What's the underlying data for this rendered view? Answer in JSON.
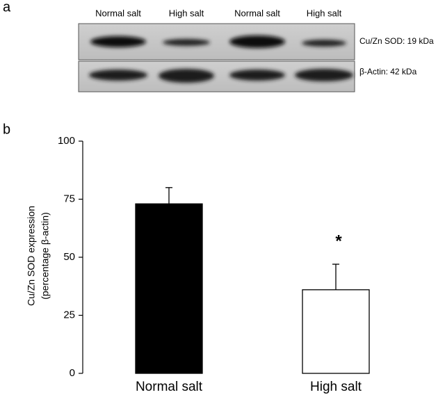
{
  "panel_labels": [
    "a",
    "b"
  ],
  "blot": {
    "lane_labels": [
      "Normal salt",
      "High salt",
      "Normal salt",
      "High salt"
    ],
    "band_labels": [
      "Cu/Zn SOD: 19 kDa",
      "β-Actin: 42 kDa"
    ]
  },
  "chart_data": {
    "type": "bar",
    "ylabel": [
      "Cu/Zn SOD expression",
      "(percentage β-actin)"
    ],
    "categories": [
      "Normal salt",
      "High salt"
    ],
    "values": [
      73,
      36
    ],
    "errors": [
      7,
      11
    ],
    "colors": [
      "#000000",
      "#ffffff"
    ],
    "significance_labels": [
      null,
      "*"
    ],
    "ylim": [
      0,
      100
    ],
    "yticks": [
      0,
      25,
      50,
      75,
      100
    ]
  }
}
